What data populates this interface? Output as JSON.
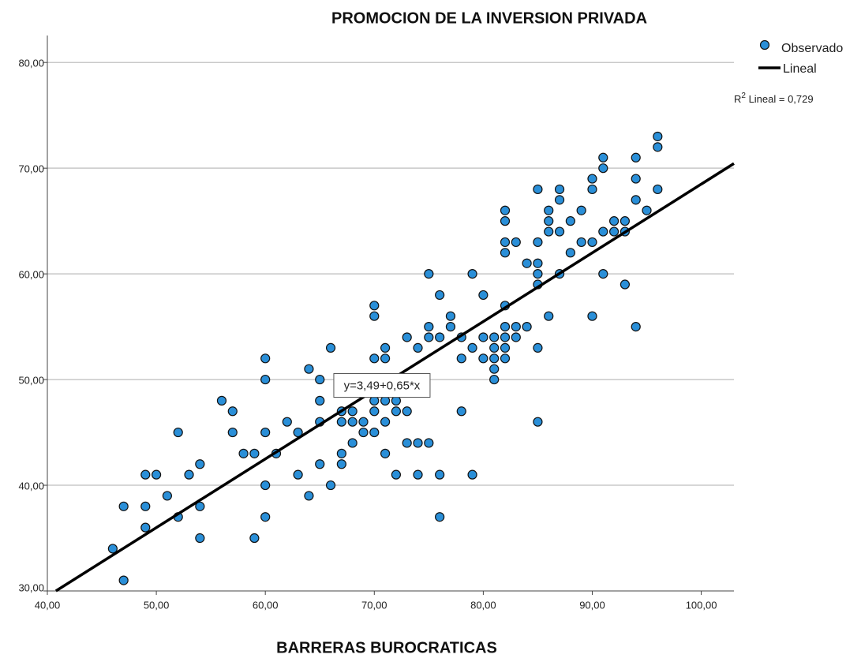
{
  "chart_data": {
    "type": "scatter",
    "title": "PROMOCION DE LA INVERSION PRIVADA",
    "x_label": "BARRERAS BUROCRATICAS",
    "annotation": "y=3,49+0,65*x",
    "r2_label": {
      "base": "R",
      "sup": "2",
      "rest": " Lineal = 0,729"
    },
    "xlim": [
      40,
      103
    ],
    "ylim": [
      30,
      83.3
    ],
    "xticks": [
      {
        "value": 40,
        "label": "40,00"
      },
      {
        "value": 50,
        "label": "50,00"
      },
      {
        "value": 60,
        "label": "60,00"
      },
      {
        "value": 70,
        "label": "70,00"
      },
      {
        "value": 80,
        "label": "80,00"
      },
      {
        "value": 90,
        "label": "90,00"
      },
      {
        "value": 100,
        "label": "100,00"
      }
    ],
    "yticks": [
      {
        "value": 30,
        "label": "30,00"
      },
      {
        "value": 40,
        "label": "40,00"
      },
      {
        "value": 50,
        "label": "50,00"
      },
      {
        "value": 60,
        "label": "60,00"
      },
      {
        "value": 70,
        "label": "70,00"
      },
      {
        "value": 80,
        "label": "80,00"
      }
    ],
    "grid": true,
    "series": [
      {
        "name": "Observado",
        "color": "#2a8fd8",
        "x": [
          46,
          47,
          47,
          49,
          49,
          49,
          50,
          51,
          52,
          52,
          53,
          54,
          54,
          54,
          56,
          57,
          57,
          58,
          59,
          59,
          60,
          60,
          60,
          60,
          60,
          61,
          62,
          63,
          63,
          64,
          64,
          65,
          65,
          65,
          65,
          66,
          66,
          67,
          67,
          67,
          67,
          67,
          68,
          68,
          68,
          69,
          69,
          70,
          70,
          70,
          70,
          70,
          70,
          70,
          71,
          71,
          71,
          71,
          71,
          71,
          72,
          72,
          72,
          73,
          73,
          73,
          74,
          74,
          74,
          75,
          75,
          75,
          75,
          76,
          76,
          76,
          76,
          77,
          77,
          78,
          78,
          78,
          79,
          79,
          79,
          80,
          80,
          80,
          81,
          81,
          81,
          81,
          81,
          82,
          82,
          82,
          82,
          82,
          82,
          82,
          82,
          82,
          83,
          83,
          83,
          84,
          84,
          85,
          85,
          85,
          85,
          85,
          85,
          85,
          86,
          86,
          86,
          86,
          87,
          87,
          87,
          87,
          88,
          88,
          89,
          89,
          90,
          90,
          90,
          90,
          91,
          91,
          91,
          91,
          92,
          92,
          93,
          93,
          93,
          94,
          94,
          94,
          94,
          95,
          96,
          96,
          96
        ],
        "values": [
          34,
          38,
          31,
          41,
          38,
          36,
          41,
          39,
          45,
          37,
          41,
          42,
          38,
          35,
          48,
          47,
          45,
          43,
          43,
          35,
          52,
          50,
          45,
          40,
          37,
          43,
          46,
          45,
          41,
          51,
          39,
          50,
          48,
          46,
          42,
          53,
          40,
          50,
          47,
          46,
          43,
          42,
          47,
          46,
          44,
          46,
          45,
          57,
          56,
          52,
          50,
          48,
          47,
          45,
          53,
          52,
          50,
          48,
          46,
          43,
          48,
          47,
          41,
          54,
          47,
          44,
          53,
          44,
          41,
          60,
          55,
          54,
          44,
          58,
          54,
          41,
          37,
          56,
          55,
          54,
          52,
          47,
          60,
          53,
          41,
          58,
          54,
          52,
          54,
          53,
          52,
          51,
          50,
          66,
          65,
          63,
          62,
          57,
          55,
          54,
          53,
          52,
          63,
          55,
          54,
          61,
          55,
          68,
          63,
          61,
          60,
          59,
          53,
          46,
          66,
          65,
          64,
          56,
          68,
          67,
          64,
          60,
          65,
          62,
          66,
          63,
          69,
          68,
          63,
          56,
          71,
          70,
          64,
          60,
          65,
          64,
          65,
          64,
          59,
          71,
          69,
          67,
          55,
          66,
          73,
          72,
          68
        ]
      },
      {
        "name": "Lineal",
        "color": "#000000",
        "intercept": 3.49,
        "slope": 0.65
      }
    ]
  }
}
